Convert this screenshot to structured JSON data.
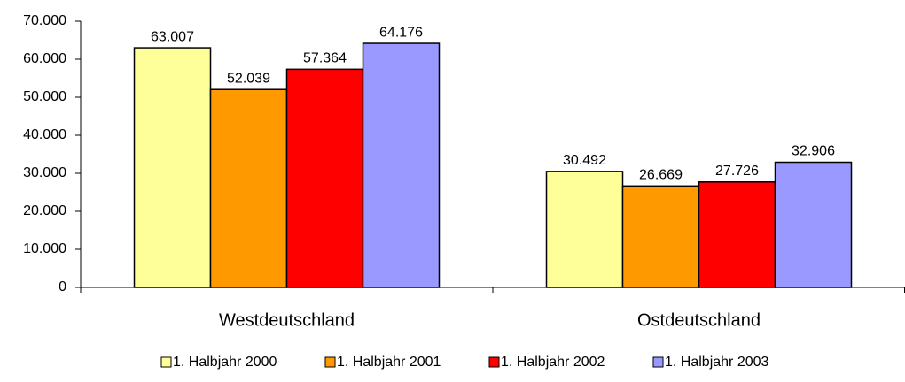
{
  "chart_data": {
    "type": "bar",
    "categories": [
      "Westdeutschland",
      "Ostdeutschland"
    ],
    "series": [
      {
        "name": "1. Halbjahr 2000",
        "color": "#ffff99",
        "values": [
          63007,
          30492
        ],
        "value_labels": [
          "63.007",
          "30.492"
        ]
      },
      {
        "name": "1. Halbjahr 2001",
        "color": "#ff9900",
        "values": [
          52039,
          26669
        ],
        "value_labels": [
          "52.039",
          "26.669"
        ]
      },
      {
        "name": "1. Halbjahr 2002",
        "color": "#ff0000",
        "values": [
          57364,
          27726
        ],
        "value_labels": [
          "57.364",
          "27.726"
        ]
      },
      {
        "name": "1. Halbjahr 2003",
        "color": "#9999ff",
        "values": [
          64176,
          32906
        ],
        "value_labels": [
          "64.176",
          "32.906"
        ]
      }
    ],
    "ylim": [
      0,
      70000
    ],
    "yticks": [
      0,
      {
        "value": 10000,
        "label": "10.000"
      },
      {
        "value": 20000,
        "label": "20.000"
      },
      {
        "value": 30000,
        "label": "30.000"
      },
      {
        "value": 40000,
        "label": "40.000"
      },
      {
        "value": 50000,
        "label": "50.000"
      },
      {
        "value": 60000,
        "label": "60.000"
      },
      {
        "value": 70000,
        "label": "70.000"
      }
    ],
    "legend": "bottom"
  }
}
